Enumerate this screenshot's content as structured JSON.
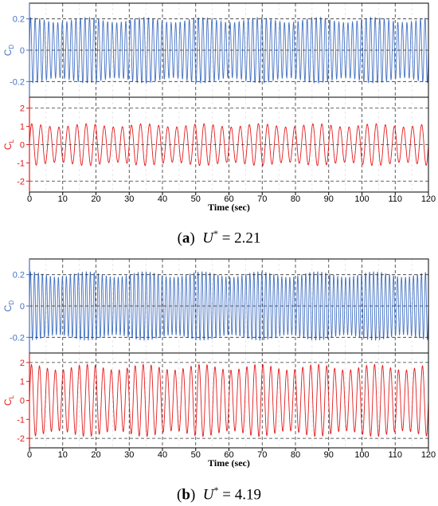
{
  "chart_data": [
    {
      "type": "line",
      "panel": "(a)",
      "caption": {
        "letter": "a",
        "variable": "U",
        "superscript": "*",
        "equals": "=",
        "value": "2.21"
      },
      "xlabel": "Time (sec)",
      "xlim": [
        0,
        120
      ],
      "xticks": [
        "0",
        "10",
        "20",
        "30",
        "40",
        "50",
        "60",
        "70",
        "80",
        "90",
        "100",
        "110",
        "120"
      ],
      "grid": true,
      "subplots": [
        {
          "ylabel": "C",
          "ylabel_sub": "D",
          "color": "#4472c4",
          "ylim": [
            -0.3,
            0.3
          ],
          "yticks": [
            "0.2",
            "0",
            "-0.2"
          ],
          "yticks_values": [
            0.2,
            0,
            -0.2
          ],
          "dashed_ref": [
            0.2,
            0,
            -0.2
          ],
          "series": [
            {
              "type": "oscillation",
              "mean": 0,
              "amplitude": 0.21,
              "cycles": 88,
              "t_start": 0,
              "t_end": 120
            }
          ]
        },
        {
          "ylabel": "C",
          "ylabel_sub": "L",
          "color": "#e41a1c",
          "ylim": [
            -2.6,
            2.6
          ],
          "yticks": [
            "2",
            "1",
            "0",
            "-1",
            "-2"
          ],
          "yticks_values": [
            2,
            1,
            0,
            -1,
            -2
          ],
          "dashed_ref": [
            2,
            0,
            -2
          ],
          "series": [
            {
              "type": "oscillation",
              "mean": 0,
              "amplitude": 1.15,
              "cycles": 44,
              "t_start": 0,
              "t_end": 120
            }
          ]
        }
      ]
    },
    {
      "type": "line",
      "panel": "(b)",
      "caption": {
        "letter": "b",
        "variable": "U",
        "superscript": "*",
        "equals": "=",
        "value": "4.19"
      },
      "xlabel": "Time (sec)",
      "xlim": [
        0,
        120
      ],
      "xticks": [
        "0",
        "10",
        "20",
        "30",
        "40",
        "50",
        "60",
        "70",
        "80",
        "90",
        "100",
        "110",
        "120"
      ],
      "grid": true,
      "subplots": [
        {
          "ylabel": "C",
          "ylabel_sub": "D",
          "color": "#4472c4",
          "ylim": [
            -0.3,
            0.3
          ],
          "yticks": [
            "0.2",
            "0",
            "-0.2"
          ],
          "yticks_values": [
            0.2,
            0,
            -0.2
          ],
          "dashed_ref": [
            0.2,
            0,
            -0.2
          ],
          "series": [
            {
              "type": "oscillation",
              "mean": 0,
              "amplitude": 0.22,
              "cycles": 100,
              "t_start": 0,
              "t_end": 120
            }
          ]
        },
        {
          "ylabel": "C",
          "ylabel_sub": "L",
          "color": "#e41a1c",
          "ylim": [
            -2.5,
            2.5
          ],
          "yticks": [
            "2",
            "1",
            "0",
            "-1",
            "-2"
          ],
          "yticks_values": [
            2,
            1,
            0,
            -1,
            -2
          ],
          "dashed_ref": [
            2,
            -2
          ],
          "series": [
            {
              "type": "oscillation",
              "mean": 0,
              "amplitude": 1.9,
              "cycles": 50,
              "t_start": 0,
              "t_end": 120
            }
          ]
        }
      ]
    }
  ]
}
